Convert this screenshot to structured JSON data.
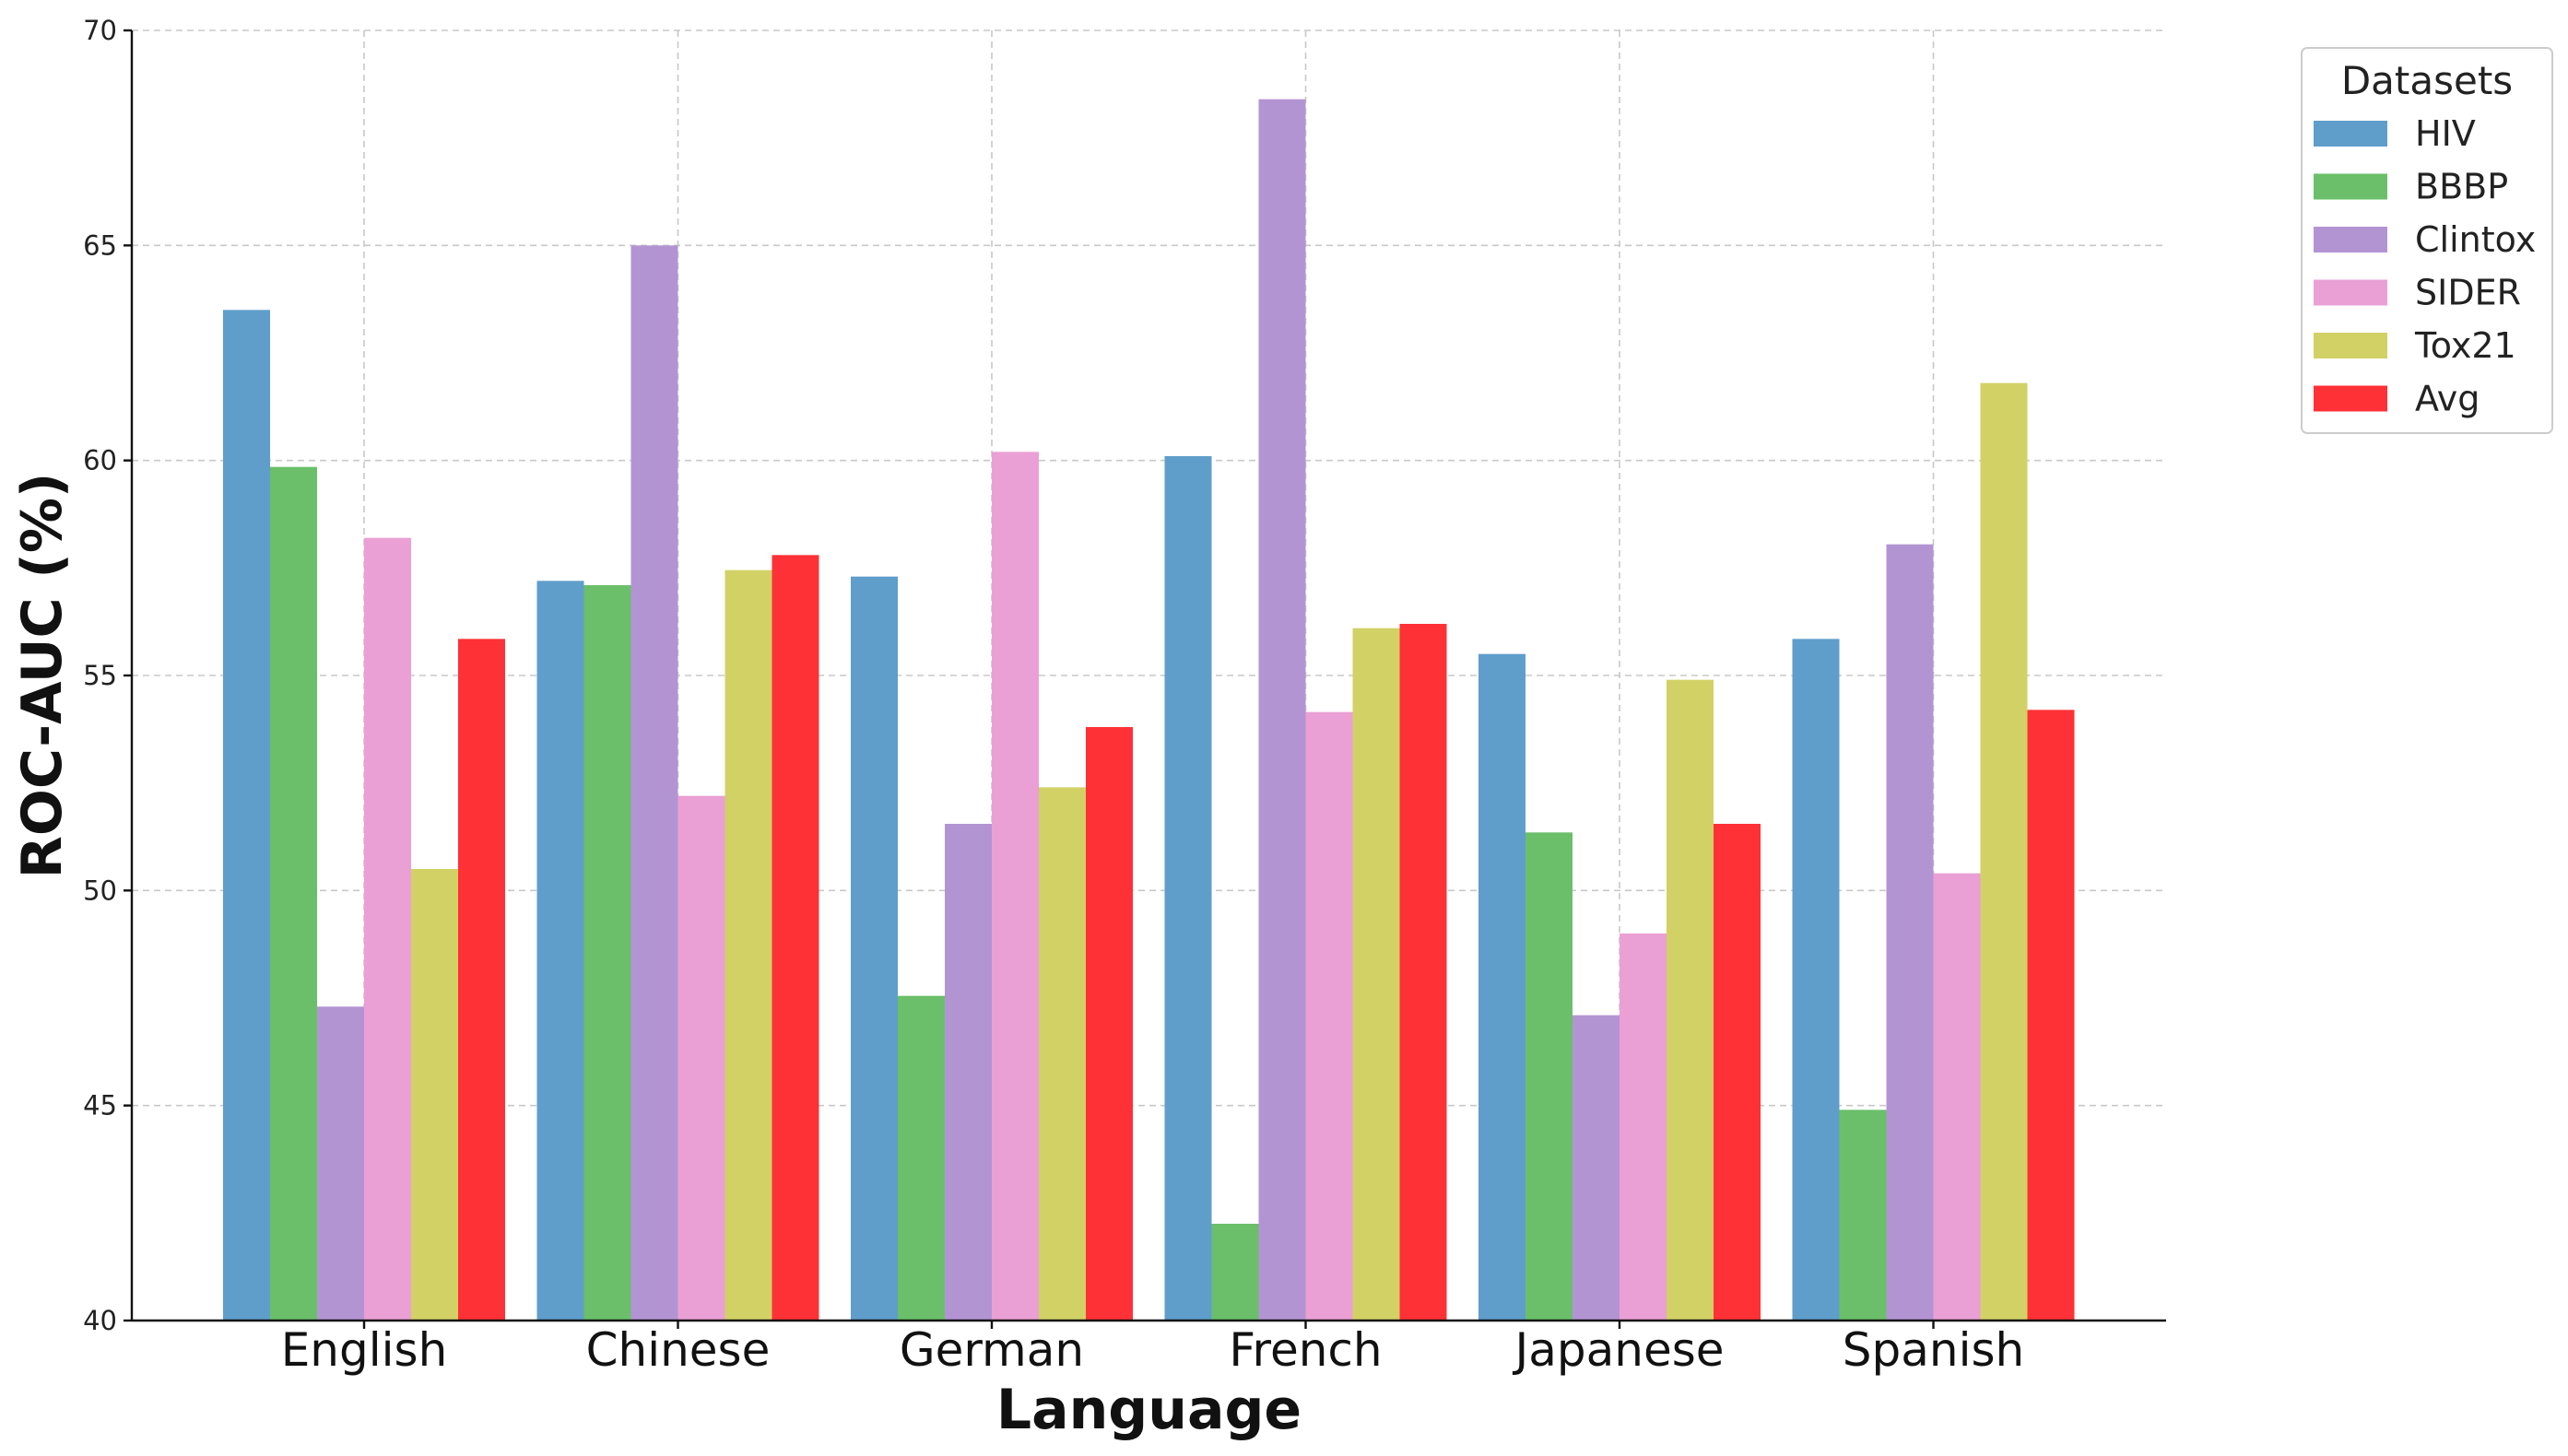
{
  "chart_data": {
    "type": "bar",
    "title": "",
    "xlabel": "Language",
    "ylabel": "ROC-AUC (%)",
    "ylim": [
      40,
      70
    ],
    "yticks": [
      40,
      45,
      50,
      55,
      60,
      65,
      70
    ],
    "grid": true,
    "legend": {
      "title": "Datasets",
      "placement": "outside-top-right"
    },
    "categories": [
      "English",
      "Chinese",
      "German",
      "French",
      "Japanese",
      "Spanish"
    ],
    "series": [
      {
        "name": "HIV",
        "color": "#5f9ecb",
        "values": [
          63.5,
          57.2,
          57.3,
          60.1,
          55.5,
          55.85
        ]
      },
      {
        "name": "BBBP",
        "color": "#6bbf6a",
        "values": [
          59.85,
          57.1,
          47.55,
          42.25,
          51.35,
          44.9
        ]
      },
      {
        "name": "Clintox",
        "color": "#b394d3",
        "values": [
          47.3,
          65.0,
          51.55,
          68.4,
          47.1,
          58.05
        ]
      },
      {
        "name": "SIDER",
        "color": "#eaa0d4",
        "values": [
          58.2,
          52.2,
          60.2,
          54.15,
          49.0,
          50.4
        ]
      },
      {
        "name": "Tox21",
        "color": "#d2d166",
        "values": [
          50.5,
          57.45,
          52.4,
          56.1,
          54.9,
          61.8
        ]
      },
      {
        "name": "Avg",
        "color": "#fe3136",
        "values": [
          55.85,
          57.8,
          53.8,
          56.2,
          51.55,
          54.2
        ]
      }
    ]
  }
}
